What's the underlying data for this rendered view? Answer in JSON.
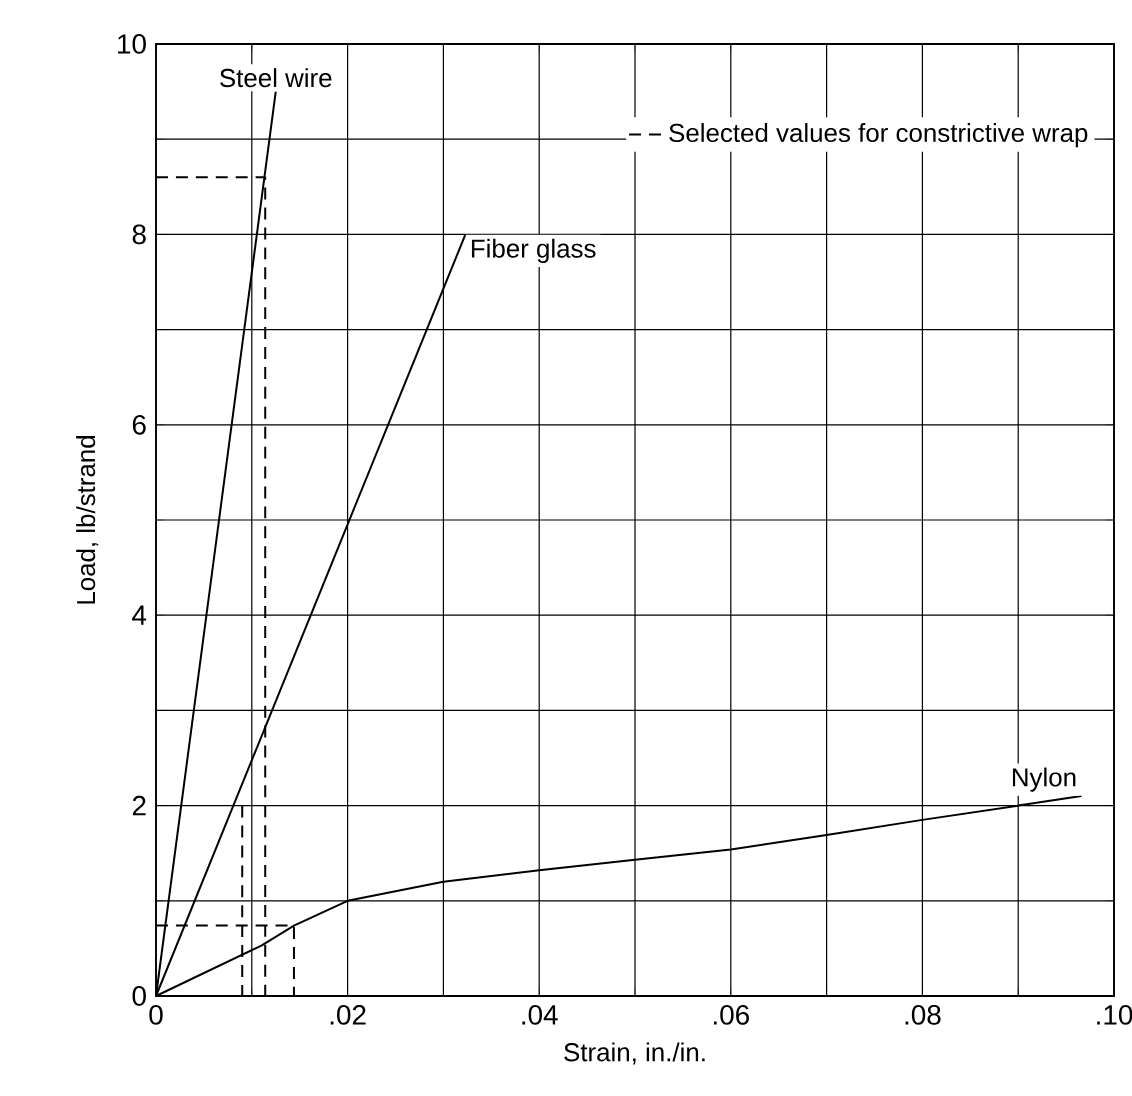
{
  "chart_data": {
    "type": "line",
    "xlabel": "Strain, in./in.",
    "ylabel": "Load, lb/strand",
    "xlim": [
      0,
      0.1
    ],
    "ylim": [
      0,
      10
    ],
    "xticks": [
      {
        "value": 0,
        "label": "0"
      },
      {
        "value": 0.01,
        "label": null
      },
      {
        "value": 0.02,
        "label": ".02"
      },
      {
        "value": 0.03,
        "label": null
      },
      {
        "value": 0.04,
        "label": ".04"
      },
      {
        "value": 0.05,
        "label": null
      },
      {
        "value": 0.06,
        "label": ".06"
      },
      {
        "value": 0.07,
        "label": null
      },
      {
        "value": 0.08,
        "label": ".08"
      },
      {
        "value": 0.09,
        "label": null
      },
      {
        "value": 0.1,
        "label": ".10"
      }
    ],
    "yticks": [
      0,
      {
        "value": 1,
        "label": null
      },
      2,
      {
        "value": 3,
        "label": null
      },
      4,
      {
        "value": 5,
        "label": null
      },
      6,
      {
        "value": 7,
        "label": null
      },
      8,
      {
        "value": 9,
        "label": null
      },
      10
    ],
    "grid": true,
    "legend": "top right",
    "marker": "none",
    "series": [
      {
        "name": "Steel wire",
        "color": "#000000",
        "x": [
          0,
          0.0125
        ],
        "values": [
          0,
          9.5
        ]
      },
      {
        "name": "Fiber glass",
        "color": "#000000",
        "x": [
          0,
          0.0323
        ],
        "values": [
          0,
          8.0
        ]
      },
      {
        "name": "Nylon",
        "color": "#000000",
        "x": [
          0,
          0.011,
          0.0144,
          0.02,
          0.025,
          0.03,
          0.04,
          0.05,
          0.06,
          0.07,
          0.08,
          0.09,
          0.0966
        ],
        "values": [
          0,
          0.53,
          0.74,
          1.0,
          1.1,
          1.2,
          1.32,
          1.43,
          1.54,
          1.69,
          1.85,
          2.0,
          2.1
        ]
      },
      {
        "name": "Selected values for constrictive wrap",
        "color": "#000000",
        "line_style": "dashed",
        "x": [
          0,
          0.0114,
          0.0114,
          null,
          0.009,
          0.009,
          null,
          0,
          0.0144,
          0.0144
        ],
        "values": [
          8.6,
          8.6,
          0,
          null,
          2.0,
          0,
          null,
          0.74,
          0.74,
          0
        ]
      }
    ]
  }
}
